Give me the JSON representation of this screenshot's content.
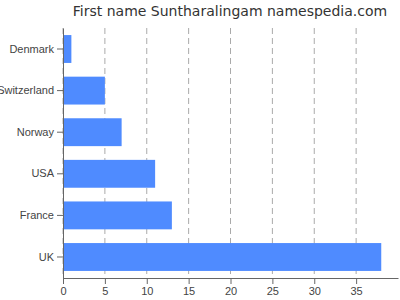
{
  "chart_data": {
    "type": "bar",
    "orientation": "horizontal",
    "title": "First name Suntharalingam namespedia.com",
    "categories": [
      "Denmark",
      "Switzerland",
      "Norway",
      "USA",
      "France",
      "UK"
    ],
    "values": [
      1,
      5,
      7,
      11,
      13,
      38
    ],
    "color": "#4f8bff",
    "xlim": [
      0,
      40
    ],
    "xticks": [
      0,
      5,
      10,
      15,
      20,
      25,
      30,
      35
    ],
    "grid": true
  }
}
